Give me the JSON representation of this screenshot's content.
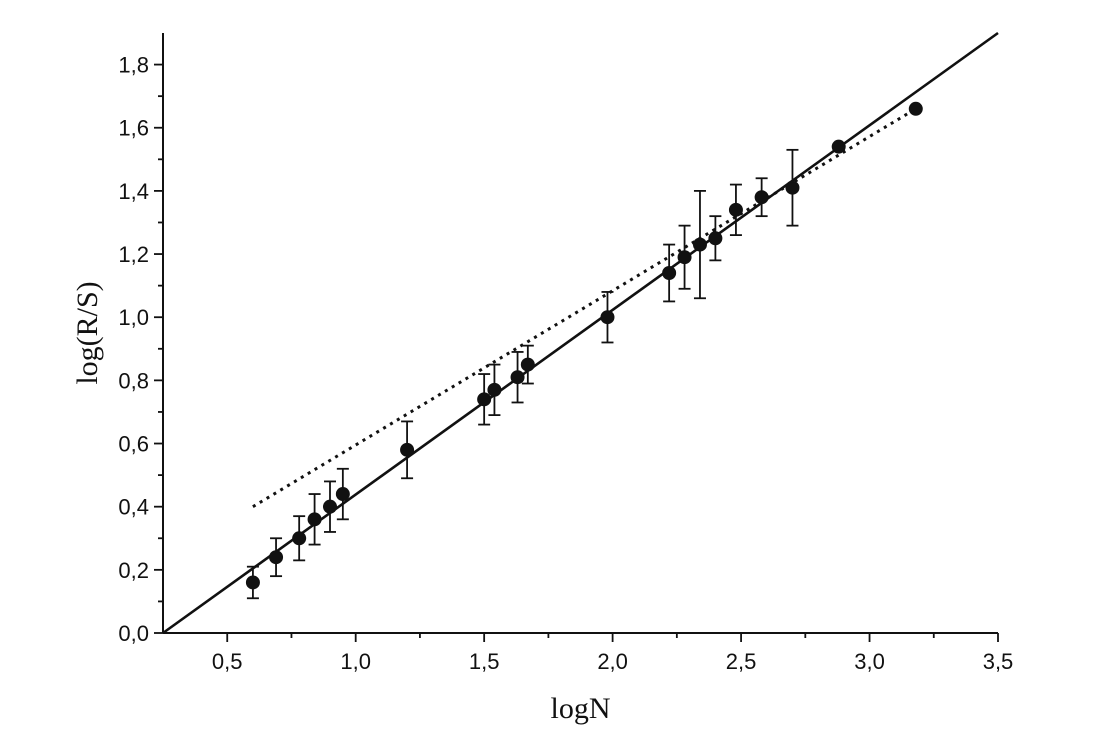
{
  "chart_data": {
    "type": "scatter",
    "title": "",
    "xlabel": "logN",
    "ylabel": "log(R/S)",
    "xlim": [
      0.25,
      3.5
    ],
    "ylim": [
      0.0,
      1.9
    ],
    "x_ticks": [
      0.5,
      1.0,
      1.5,
      2.0,
      2.5,
      3.0,
      3.5
    ],
    "x_tick_labels": [
      "0,5",
      "1,0",
      "1,5",
      "2,0",
      "2,5",
      "3,0",
      "3,5"
    ],
    "y_ticks": [
      0.0,
      0.2,
      0.4,
      0.6,
      0.8,
      1.0,
      1.2,
      1.4,
      1.6,
      1.8
    ],
    "y_tick_labels": [
      "0,0",
      "0,2",
      "0,4",
      "0,6",
      "0,8",
      "1,0",
      "1,2",
      "1,4",
      "1,6",
      "1,8"
    ],
    "grid": false,
    "points": [
      {
        "x": 0.6,
        "y": 0.16,
        "err": 0.05
      },
      {
        "x": 0.69,
        "y": 0.24,
        "err": 0.06
      },
      {
        "x": 0.78,
        "y": 0.3,
        "err": 0.07
      },
      {
        "x": 0.84,
        "y": 0.36,
        "err": 0.08
      },
      {
        "x": 0.9,
        "y": 0.4,
        "err": 0.08
      },
      {
        "x": 0.95,
        "y": 0.44,
        "err": 0.08
      },
      {
        "x": 1.2,
        "y": 0.58,
        "err": 0.09
      },
      {
        "x": 1.5,
        "y": 0.74,
        "err": 0.08
      },
      {
        "x": 1.54,
        "y": 0.77,
        "err": 0.08
      },
      {
        "x": 1.63,
        "y": 0.81,
        "err": 0.08
      },
      {
        "x": 1.67,
        "y": 0.85,
        "err": 0.06
      },
      {
        "x": 1.98,
        "y": 1.0,
        "err": 0.08
      },
      {
        "x": 2.22,
        "y": 1.14,
        "err": 0.09
      },
      {
        "x": 2.28,
        "y": 1.19,
        "err": 0.1
      },
      {
        "x": 2.34,
        "y": 1.23,
        "err": 0.17
      },
      {
        "x": 2.4,
        "y": 1.25,
        "err": 0.07
      },
      {
        "x": 2.48,
        "y": 1.34,
        "err": 0.08
      },
      {
        "x": 2.58,
        "y": 1.38,
        "err": 0.06
      },
      {
        "x": 2.7,
        "y": 1.41,
        "err": 0.12
      },
      {
        "x": 2.88,
        "y": 1.54,
        "err": 0.0
      },
      {
        "x": 3.18,
        "y": 1.66,
        "err": 0.0
      }
    ],
    "fit_line": [
      [
        0.25,
        0.0
      ],
      [
        3.5,
        1.9
      ]
    ],
    "trend_line": [
      [
        0.6,
        0.4
      ],
      [
        3.18,
        1.66
      ]
    ]
  }
}
